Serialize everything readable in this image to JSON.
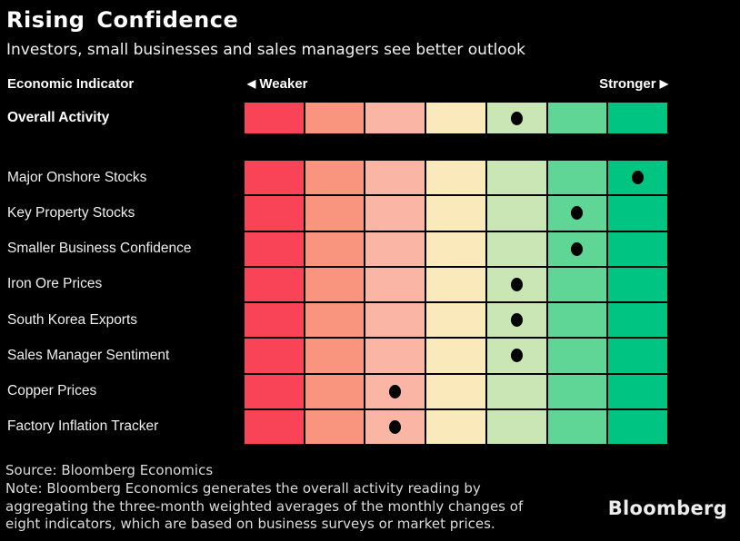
{
  "title": "Rising Confidence",
  "subtitle": "Investors, small businesses and sales managers see better outlook",
  "header": {
    "indicator_label": "Economic Indicator",
    "weaker_arrow": "◀",
    "weaker_text": "Weaker",
    "stronger_text": "Stronger",
    "stronger_arrow": "▶"
  },
  "chart_data": {
    "type": "heatmap",
    "title": "Rising Confidence",
    "subtitle": "Investors, small businesses and sales managers see better outlook",
    "scale": {
      "columns": 7,
      "direction": "weaker (left) to stronger (right)",
      "colors": [
        "#f94357",
        "#f9947e",
        "#fbb5a5",
        "#faeabb",
        "#cae6b4",
        "#5fd695",
        "#00c481"
      ]
    },
    "marker_color": "#000000",
    "overall_row": {
      "label": "Overall Activity",
      "value": 5
    },
    "rows": [
      {
        "label": "Major Onshore Stocks",
        "value": 7
      },
      {
        "label": "Key Property Stocks",
        "value": 6
      },
      {
        "label": "Smaller Business Confidence",
        "value": 6
      },
      {
        "label": "Iron Ore Prices",
        "value": 5
      },
      {
        "label": "South Korea Exports",
        "value": 5
      },
      {
        "label": "Sales Manager Sentiment",
        "value": 5
      },
      {
        "label": "Copper Prices",
        "value": 3
      },
      {
        "label": "Factory Inflation Tracker",
        "value": 3
      }
    ]
  },
  "footer": {
    "source": "Source: Bloomberg Economics",
    "note_lines": [
      "Note: Bloomberg Economics generates the overall activity reading by",
      "aggregating the three-month weighted averages of the monthly changes of",
      "eight indicators, which are based on business surveys or market prices."
    ],
    "logo": "Bloomberg"
  }
}
